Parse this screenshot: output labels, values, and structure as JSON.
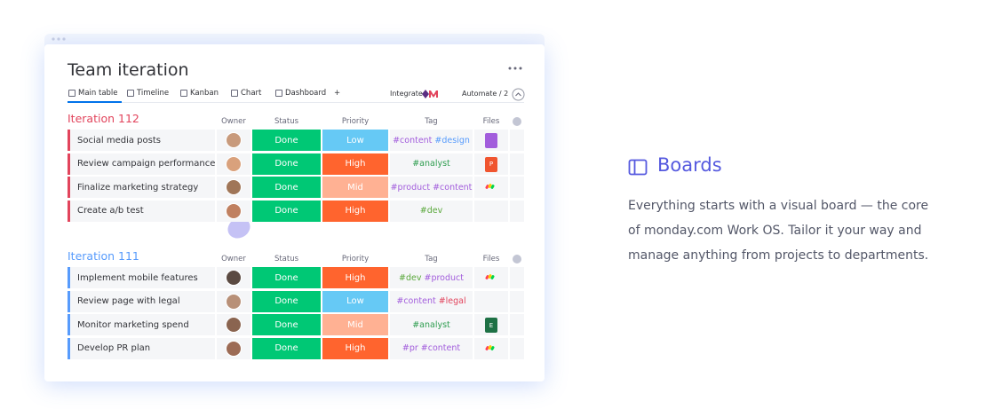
{
  "header": {
    "title": "Team iteration",
    "tabs": [
      "Main table",
      "Timeline",
      "Kanban",
      "Chart",
      "Dashboard",
      "+"
    ],
    "integrate": "Integrate",
    "automate": "Automate / 2"
  },
  "groups": [
    {
      "title": "Iteration 112",
      "color": "#e2445c",
      "columns": [
        "Owner",
        "Status",
        "Priority",
        "Tag",
        "Files"
      ],
      "rows": [
        {
          "item": "Social media posts",
          "status": {
            "text": "Done",
            "color": "#00c875"
          },
          "priority": {
            "text": "Low",
            "color": "#66c9f5"
          },
          "tags": [
            {
              "text": "#content",
              "color": "#a25ddc"
            },
            {
              "text": "#design",
              "color": "#579bfc"
            }
          ],
          "file": {
            "kind": "doc",
            "color": "#a25ddc"
          }
        },
        {
          "item": "Review campaign performance",
          "status": {
            "text": "Done",
            "color": "#00c875"
          },
          "priority": {
            "text": "High",
            "color": "#ff642e"
          },
          "tags": [
            {
              "text": "#analyst",
              "color": "#2e9d4f"
            }
          ],
          "file": {
            "kind": "pdf",
            "color": "#f0552f",
            "letter": "P"
          }
        },
        {
          "item": "Finalize marketing strategy",
          "status": {
            "text": "Done",
            "color": "#00c875"
          },
          "priority": {
            "text": "Mid",
            "color": "#ffb193"
          },
          "tags": [
            {
              "text": "#product",
              "color": "#a25ddc"
            },
            {
              "text": "#content",
              "color": "#a25ddc"
            }
          ],
          "file": {
            "kind": "logo"
          }
        },
        {
          "item": "Create a/b test",
          "status": {
            "text": "Done",
            "color": "#00c875"
          },
          "priority": {
            "text": "High",
            "color": "#ff642e"
          },
          "tags": [
            {
              "text": "#dev",
              "color": "#5aa83c"
            }
          ]
        }
      ]
    },
    {
      "title": "Iteration 111",
      "color": "#579bfc",
      "columns": [
        "Owner",
        "Status",
        "Priority",
        "Tag",
        "Files"
      ],
      "rows": [
        {
          "item": "Implement mobile features",
          "status": {
            "text": "Done",
            "color": "#00c875"
          },
          "priority": {
            "text": "High",
            "color": "#ff642e"
          },
          "tags": [
            {
              "text": "#dev",
              "color": "#5aa83c"
            },
            {
              "text": "#product",
              "color": "#a25ddc"
            }
          ],
          "file": {
            "kind": "logo"
          }
        },
        {
          "item": "Review page with legal",
          "status": {
            "text": "Done",
            "color": "#00c875"
          },
          "priority": {
            "text": "Low",
            "color": "#66c9f5"
          },
          "tags": [
            {
              "text": "#content",
              "color": "#a25ddc"
            },
            {
              "text": "#legal",
              "color": "#e2445c"
            }
          ]
        },
        {
          "item": "Monitor marketing spend",
          "status": {
            "text": "Done",
            "color": "#00c875"
          },
          "priority": {
            "text": "Mid",
            "color": "#ffb193"
          },
          "tags": [
            {
              "text": "#analyst",
              "color": "#2e9d4f"
            }
          ],
          "file": {
            "kind": "sheet",
            "color": "#1e7145",
            "letter": "E"
          }
        },
        {
          "item": "Develop PR plan",
          "status": {
            "text": "Done",
            "color": "#00c875"
          },
          "priority": {
            "text": "High",
            "color": "#ff642e"
          },
          "tags": [
            {
              "text": "#pr",
              "color": "#a25ddc"
            },
            {
              "text": "#content",
              "color": "#a25ddc"
            }
          ],
          "file": {
            "kind": "logo"
          }
        }
      ]
    }
  ],
  "feature": {
    "title": "Boards",
    "lines": [
      "Everything starts with a visual board — the core",
      "of monday.com Work OS. Tailor it your way and",
      "manage anything from projects to departments."
    ]
  }
}
